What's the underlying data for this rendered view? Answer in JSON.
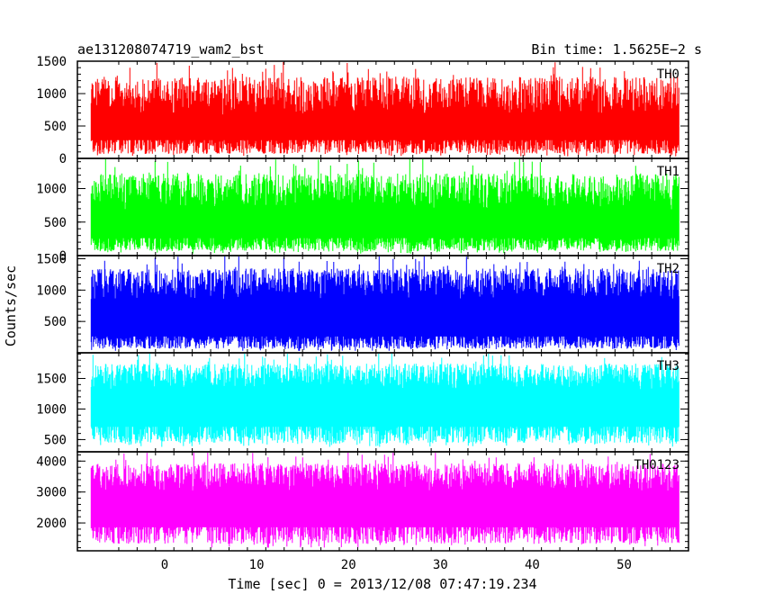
{
  "chart_data": {
    "type": "line",
    "title": "ae131208074719_wam2_bst",
    "bin_time_label": "Bin time: 1.5625E−2 s",
    "xlabel": "Time [sec] 0 = 2013/12/08 07:47:19.234",
    "ylabel": "Counts/sec",
    "xlim": [
      -9.5,
      57
    ],
    "x_ticks": [
      0,
      10,
      20,
      30,
      40,
      50
    ],
    "x_data_range": [
      -8,
      56
    ],
    "bin_time": 0.015625,
    "grid": false,
    "panels": [
      {
        "name": "TH0",
        "color": "#ff0000",
        "ylim": [
          0,
          1500
        ],
        "y_ticks": [
          0,
          500,
          1000,
          1500
        ],
        "typical_low": 220,
        "typical_high": 850,
        "min": 30,
        "max": 1500
      },
      {
        "name": "TH1",
        "color": "#00ff00",
        "ylim": [
          0,
          1450
        ],
        "y_ticks": [
          0,
          500,
          1000
        ],
        "typical_low": 200,
        "typical_high": 850,
        "min": 30,
        "max": 1450
      },
      {
        "name": "TH2",
        "color": "#0000ff",
        "ylim": [
          0,
          1550
        ],
        "y_ticks": [
          500,
          1000,
          1500
        ],
        "typical_low": 200,
        "typical_high": 1000,
        "min": 30,
        "max": 1550
      },
      {
        "name": "TH3",
        "color": "#00ffff",
        "ylim": [
          300,
          1920
        ],
        "y_ticks": [
          500,
          1000,
          1500
        ],
        "typical_low": 650,
        "typical_high": 1450,
        "min": 380,
        "max": 1920
      },
      {
        "name": "TH0123",
        "color": "#ff00ff",
        "ylim": [
          1100,
          4300
        ],
        "y_ticks": [
          2000,
          3000,
          4000
        ],
        "typical_low": 1800,
        "typical_high": 3300,
        "min": 1200,
        "max": 4300
      }
    ]
  }
}
